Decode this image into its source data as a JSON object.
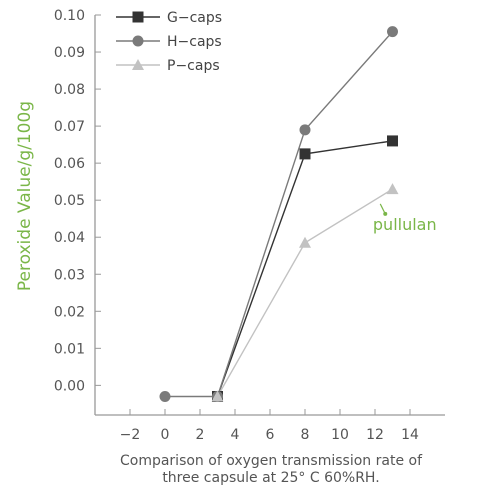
{
  "chart_data": {
    "type": "line",
    "title": "",
    "xlabel": [
      "Comparison of oxygen transmission rate of",
      "three capsule at 25° C 60%RH."
    ],
    "ylabel": "Peroxide Value/g/100g",
    "xlim": [
      -4,
      16
    ],
    "ylim": [
      -0.008,
      0.1
    ],
    "x_ticks": [
      -2,
      0,
      2,
      4,
      6,
      8,
      10,
      12,
      14
    ],
    "x_tick_labels": [
      "−2",
      "0",
      "2",
      "4",
      "6",
      "8",
      "10",
      "12",
      "14"
    ],
    "y_ticks": [
      0.0,
      0.01,
      0.02,
      0.03,
      0.04,
      0.05,
      0.06,
      0.07,
      0.08,
      0.09,
      0.1
    ],
    "y_tick_labels": [
      "0.00",
      "0.01",
      "0.02",
      "0.03",
      "0.04",
      "0.05",
      "0.06",
      "0.07",
      "0.08",
      "0.09",
      "0.10"
    ],
    "grid": false,
    "legend_position": "top-left",
    "series": [
      {
        "name": "G−caps",
        "color": "#333333",
        "marker": "square",
        "x": [
          3,
          8,
          13
        ],
        "y": [
          -0.003,
          0.0625,
          0.066
        ]
      },
      {
        "name": "H−caps",
        "color": "#7a7a7a",
        "marker": "circle",
        "x": [
          0,
          3,
          8,
          13
        ],
        "y": [
          -0.003,
          -0.003,
          0.069,
          0.0955
        ]
      },
      {
        "name": "P−caps",
        "color": "#c2c2c2",
        "marker": "triangle",
        "x": [
          3,
          8,
          13
        ],
        "y": [
          -0.003,
          0.0385,
          0.053
        ]
      }
    ],
    "annotations": [
      {
        "text": "pullulan",
        "x": 13.7,
        "y": 0.042,
        "arrow_to": [
          12.3,
          0.049
        ],
        "color": "#7ab648"
      }
    ],
    "colors": {
      "axis": "#999999",
      "ylabel": "#7ab648"
    }
  }
}
